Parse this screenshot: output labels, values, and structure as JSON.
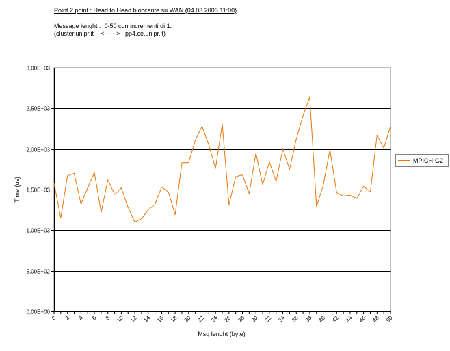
{
  "chart_data": {
    "type": "line",
    "title": "Point 2 point : Head to Head bloccante su WAN (04.03.2003 11:00)",
    "subtitle_lines": [
      "Message lenght :  0-50 con incrementi di 1.",
      "(cluster.unipr.it    <------>   pp4.ce.unipr.it)"
    ],
    "xlabel": "Msg lenght (byte)",
    "ylabel": "Time (us)",
    "ylim": [
      0,
      3000
    ],
    "yticks": [
      0,
      500,
      1000,
      1500,
      2000,
      2500,
      3000
    ],
    "ytick_labels": [
      "0,00E+00",
      "5,00E+02",
      "1,00E+03",
      "1,50E+03",
      "2,00E+03",
      "2,50E+03",
      "3,00E+03"
    ],
    "xticks": [
      0,
      2,
      4,
      6,
      8,
      10,
      12,
      14,
      16,
      18,
      20,
      22,
      24,
      26,
      28,
      30,
      32,
      34,
      36,
      38,
      40,
      42,
      44,
      46,
      48,
      50
    ],
    "grid": "horizontal",
    "legend_position": "right",
    "series": [
      {
        "name": "MPICH-G2",
        "color": "#e8760a",
        "x": [
          0,
          1,
          2,
          3,
          4,
          5,
          6,
          7,
          8,
          9,
          10,
          11,
          12,
          13,
          14,
          15,
          16,
          17,
          18,
          19,
          20,
          21,
          22,
          23,
          24,
          25,
          26,
          27,
          28,
          29,
          30,
          31,
          32,
          33,
          34,
          35,
          36,
          37,
          38,
          39,
          40,
          41,
          42,
          43,
          44,
          45,
          46,
          47,
          48,
          49,
          50
        ],
        "values": [
          1580,
          1150,
          1670,
          1700,
          1320,
          1520,
          1710,
          1220,
          1620,
          1440,
          1520,
          1280,
          1100,
          1140,
          1250,
          1320,
          1530,
          1470,
          1190,
          1830,
          1830,
          2110,
          2280,
          2050,
          1760,
          2310,
          1310,
          1660,
          1680,
          1450,
          1950,
          1560,
          1840,
          1600,
          2000,
          1750,
          2120,
          2410,
          2640,
          1290,
          1550,
          1990,
          1460,
          1420,
          1430,
          1390,
          1540,
          1470,
          2170,
          2010,
          2280
        ]
      }
    ]
  }
}
